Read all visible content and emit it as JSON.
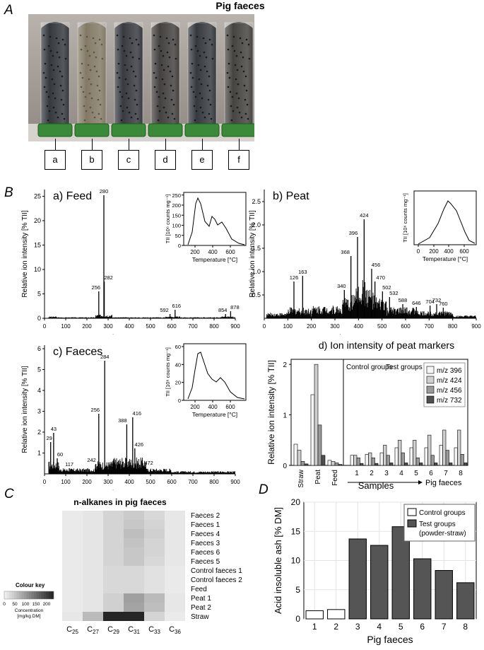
{
  "panel_A": {
    "label": "A",
    "title": "Pig faeces",
    "tube_labels": [
      "a",
      "b",
      "c",
      "d",
      "e",
      "f"
    ]
  },
  "panel_B": {
    "label": "B",
    "spectra": [
      {
        "title": "a) Feed",
        "ylabel": "Relative ion intensity [% TII]",
        "xlabel": "m/z",
        "yticks": [
          "0",
          "5",
          "10",
          "15",
          "20",
          "25"
        ],
        "xticks": [
          "0",
          "100",
          "200",
          "300",
          "400",
          "500",
          "600",
          "700",
          "800",
          "900"
        ],
        "peaks": [
          "280",
          "256",
          "282",
          "592",
          "616",
          "854",
          "878"
        ],
        "inset_ylabel": "TII [10⁶ counts mg⁻¹]",
        "inset_xlabel": "Temperature [°C]",
        "inset_yticks": [
          "0",
          "50",
          "100",
          "150",
          "200",
          "250"
        ],
        "inset_xticks": [
          "200",
          "400",
          "600"
        ]
      },
      {
        "title": "b) Peat",
        "ylabel": "Relative ion intensity [% TII]",
        "xlabel": "m/z",
        "yticks": [
          "0.5",
          "1.0",
          "1.5",
          "2.0",
          "2.5"
        ],
        "xticks": [
          "0",
          "100",
          "200",
          "300",
          "400",
          "500",
          "600",
          "700",
          "800",
          "900"
        ],
        "peaks": [
          "424",
          "396",
          "368",
          "456",
          "470",
          "502",
          "532",
          "126",
          "163",
          "340",
          "588",
          "646",
          "704",
          "732",
          "760"
        ],
        "inset_ylabel": "TII [10⁶ counts mg⁻¹]",
        "inset_xlabel": "Temperature [°C]",
        "inset_xticks": [
          "0",
          "200",
          "400",
          "600"
        ]
      },
      {
        "title": "c) Faeces",
        "ylabel": "Relative ion intensity [% TII]",
        "xlabel": "m/z",
        "yticks": [
          "1",
          "2",
          "3",
          "4",
          "5",
          "6"
        ],
        "xticks": [
          "0",
          "100",
          "200",
          "300",
          "400",
          "500",
          "600",
          "700",
          "800",
          "900"
        ],
        "peaks": [
          "284",
          "256",
          "416",
          "388",
          "426",
          "472",
          "29",
          "43",
          "60",
          "117",
          "242"
        ],
        "inset_ylabel": "TII [10⁶ counts mg⁻¹]",
        "inset_xlabel": "Temperature [°C]",
        "inset_yticks": [
          "0",
          "20",
          "40",
          "60"
        ],
        "inset_xticks": [
          "200",
          "400",
          "600"
        ]
      }
    ]
  },
  "chart_data": [
    {
      "type": "bar",
      "title": "d) Ion intensity of peat markers",
      "ylabel": "Relative ion intensity [% TII]",
      "xlabel": "Samples",
      "arrow_label": "Pig faeces",
      "group_notes": [
        "Control groups",
        "Test groups"
      ],
      "yticks": [
        "0",
        "1",
        "2"
      ],
      "ylim": [
        0,
        2.1
      ],
      "categories": [
        "Straw",
        "Peat",
        "Feed",
        "1",
        "2",
        "3",
        "4",
        "5",
        "6",
        "7",
        "8"
      ],
      "legend_position": "top-right",
      "series": [
        {
          "name": "m/z 396",
          "color": "#f5f5f5",
          "values": [
            0.42,
            1.4,
            0.1,
            0.2,
            0.22,
            0.25,
            0.35,
            0.35,
            0.35,
            0.4,
            0.35
          ]
        },
        {
          "name": "m/z 424",
          "color": "#cfcfcf",
          "values": [
            0.3,
            2.0,
            0.08,
            0.2,
            0.25,
            0.4,
            0.5,
            0.5,
            0.6,
            0.7,
            0.7
          ]
        },
        {
          "name": "m/z 456",
          "color": "#9a9a9a",
          "values": [
            0.08,
            0.8,
            0.05,
            0.15,
            0.15,
            0.2,
            0.25,
            0.15,
            0.2,
            0.3,
            0.22
          ]
        },
        {
          "name": "m/z 732",
          "color": "#505050",
          "values": [
            0.03,
            0.2,
            0.02,
            0.04,
            0.04,
            0.05,
            0.05,
            0.05,
            0.05,
            0.05,
            0.05
          ]
        }
      ]
    },
    {
      "type": "heatmap",
      "title": "n-alkanes in pig faeces",
      "columns": [
        "C25",
        "C27",
        "C29",
        "C31",
        "C33",
        "C36"
      ],
      "rows": [
        "Faeces 2",
        "Faeces 1",
        "Faeces 4",
        "Faeces 3",
        "Faeces 6",
        "Faeces 5",
        "Control faeces 1",
        "Control faeces 2",
        "Feed",
        "Peat 1",
        "Peat 2",
        "Straw"
      ],
      "values": [
        [
          5,
          10,
          30,
          40,
          25,
          8
        ],
        [
          5,
          10,
          30,
          45,
          30,
          8
        ],
        [
          5,
          10,
          30,
          55,
          35,
          8
        ],
        [
          5,
          10,
          30,
          50,
          30,
          8
        ],
        [
          5,
          10,
          30,
          45,
          30,
          8
        ],
        [
          5,
          10,
          30,
          45,
          25,
          8
        ],
        [
          5,
          10,
          25,
          25,
          15,
          5
        ],
        [
          5,
          10,
          25,
          25,
          15,
          5
        ],
        [
          5,
          10,
          25,
          25,
          15,
          5
        ],
        [
          5,
          10,
          35,
          90,
          60,
          8
        ],
        [
          5,
          10,
          35,
          85,
          55,
          8
        ],
        [
          8,
          60,
          230,
          230,
          30,
          5
        ]
      ],
      "colour_key": {
        "title": "Colour key",
        "ticks": [
          "0",
          "50",
          "100",
          "150",
          "200"
        ],
        "label": "Concentration [mg/kg DM]",
        "range": [
          0,
          230
        ]
      }
    },
    {
      "type": "bar",
      "ylabel": "Acid insoluble ash [% DM]",
      "xlabel": "Pig faeces",
      "categories": [
        "1",
        "2",
        "3",
        "4",
        "5",
        "6",
        "7",
        "8"
      ],
      "values": [
        1.4,
        1.6,
        13.7,
        12.6,
        15.8,
        10.3,
        8.3,
        6.2
      ],
      "yticks": [
        "0",
        "5",
        "10",
        "15",
        "20"
      ],
      "ylim": [
        0,
        20
      ],
      "legend_position": "top-right",
      "legend": [
        "Control groups",
        "Test groups (powder-straw)"
      ],
      "legend_lines": [
        "Control groups",
        "Test groups",
        "(powder-straw)"
      ],
      "colors": {
        "control": "#ffffff",
        "test": "#555555"
      },
      "groups": [
        "control",
        "control",
        "test",
        "test",
        "test",
        "test",
        "test",
        "test"
      ]
    }
  ],
  "panel_C_label": "C",
  "panel_D_label": "D"
}
